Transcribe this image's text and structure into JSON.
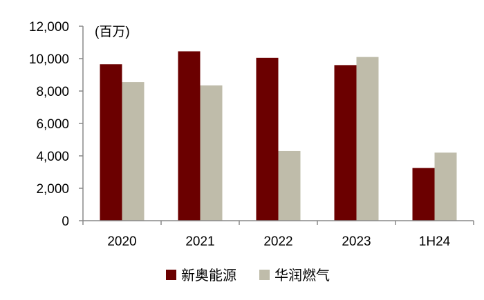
{
  "chart_data": {
    "type": "bar",
    "title": "",
    "unit_label": "(百万)",
    "categories": [
      "2020",
      "2021",
      "2022",
      "2023",
      "1H24"
    ],
    "series": [
      {
        "name": "新奥能源",
        "color": "#6b0000",
        "values": [
          9650,
          10450,
          10050,
          9600,
          3250
        ]
      },
      {
        "name": "华润燃气",
        "color": "#bfbcaa",
        "values": [
          8550,
          8350,
          4300,
          10100,
          4200
        ]
      }
    ],
    "ylim": [
      0,
      12000
    ],
    "yticks": [
      0,
      2000,
      4000,
      6000,
      8000,
      10000,
      12000
    ],
    "ytick_labels": [
      "0",
      "2,000",
      "4,000",
      "6,000",
      "8,000",
      "10,000",
      "12,000"
    ],
    "grid": false,
    "legend_position": "bottom"
  }
}
